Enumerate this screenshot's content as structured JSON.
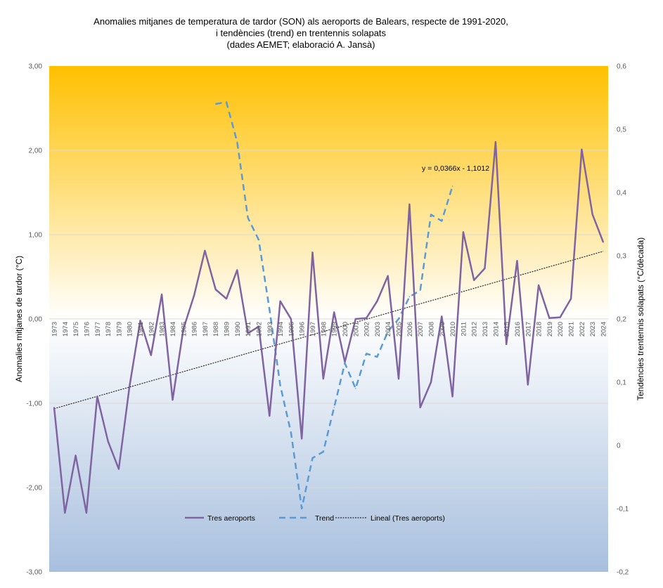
{
  "chart_data": {
    "type": "line",
    "title_lines": [
      "Anomalies mitjanes de temperatura de tardor (SON) als aeroports de Balears, respecte de 1991-2020,",
      "i tendències (trend) en trentennis solapats",
      "(dades AEMET; elaboració A. Jansà)"
    ],
    "ylabel": "Anomalies mitjanes de tardor (°C)",
    "y2label": "Tendències trentennis solapats (°C/dècada)",
    "ylim": [
      -3,
      3
    ],
    "y2lim": [
      -0.2,
      0.6
    ],
    "yticks": [
      "-3,00",
      "-2,00",
      "-1,00",
      "0,00",
      "1,00",
      "2,00",
      "3,00"
    ],
    "y2ticks": [
      "-0,2",
      "-0,1",
      "0",
      "0,1",
      "0,2",
      "0,3",
      "0,4",
      "0,5",
      "0,6"
    ],
    "x": [
      1973,
      1974,
      1975,
      1976,
      1977,
      1978,
      1979,
      1980,
      1981,
      1982,
      1983,
      1984,
      1985,
      1986,
      1987,
      1988,
      1989,
      1990,
      1991,
      1992,
      1993,
      1994,
      1995,
      1996,
      1997,
      1998,
      1999,
      2000,
      2001,
      2002,
      2003,
      2004,
      2005,
      2006,
      2007,
      2008,
      2009,
      2010,
      2011,
      2012,
      2013,
      2014,
      2015,
      2016,
      2017,
      2018,
      2019,
      2020,
      2021,
      2022,
      2023,
      2024
    ],
    "x_tick_labels": [
      "1973",
      "1974",
      "1975",
      "1976",
      "1977",
      "1978",
      "1979",
      "1980",
      "1981",
      "1982",
      "1983",
      "1984",
      "1985",
      "1986",
      "1987",
      "1988",
      "1989",
      "1990",
      "1991",
      "1992",
      "1993",
      "1994",
      "1995",
      "1996",
      "1997",
      "1998",
      "1999",
      "2000",
      "2001",
      "2002",
      "2003",
      "2004",
      "2005",
      "2006",
      "2007",
      "2008",
      "2009",
      "2010",
      "2011",
      "2012",
      "2013",
      "2014",
      "2015",
      "2016",
      "2017",
      "2018",
      "2019",
      "2020",
      "2021",
      "2022",
      "2023",
      "2024"
    ],
    "series": [
      {
        "name": "Tres aeroports",
        "axis": "left",
        "color": "#8064A2",
        "values": [
          -1.05,
          -2.3,
          -1.62,
          -2.3,
          -0.92,
          -1.45,
          -1.78,
          -0.8,
          -0.02,
          -0.43,
          0.29,
          -0.96,
          -0.12,
          0.28,
          0.81,
          0.35,
          0.24,
          0.58,
          -0.17,
          -0.09,
          -1.15,
          0.21,
          0.0,
          -1.42,
          0.79,
          -0.71,
          0.08,
          -0.51,
          0.0,
          0.01,
          0.21,
          0.51,
          -0.71,
          1.36,
          -1.05,
          -0.75,
          0.03,
          -0.92,
          1.03,
          0.46,
          0.6,
          2.1,
          -0.3,
          0.69,
          -0.78,
          0.4,
          0.01,
          0.02,
          0.24,
          2.01,
          1.24,
          0.91
        ]
      },
      {
        "name": "Trend",
        "axis": "right",
        "color": "#5B9BD5",
        "x": [
          1988,
          1989,
          1990,
          1991,
          1992,
          1993,
          1994,
          1995,
          1996,
          1997,
          1998,
          1999,
          2000,
          2001,
          2002,
          2003,
          2004,
          2005,
          2006,
          2007,
          2008,
          2009,
          2010
        ],
        "values": [
          0.54,
          0.543,
          0.48,
          0.36,
          0.325,
          0.215,
          0.095,
          0.02,
          -0.1,
          -0.02,
          -0.01,
          0.06,
          0.13,
          0.09,
          0.145,
          0.14,
          0.18,
          0.2,
          0.235,
          0.245,
          0.365,
          0.355,
          0.41
        ]
      },
      {
        "name": "Lineal  (Tres aeroports)",
        "axis": "left",
        "color": "#000000",
        "slope": 0.0366,
        "intercept": -1.1012
      }
    ],
    "trend_equation": "y = 0,0366x - 1,1012",
    "grid": true,
    "legend_position": "bottom-left inside plot"
  }
}
